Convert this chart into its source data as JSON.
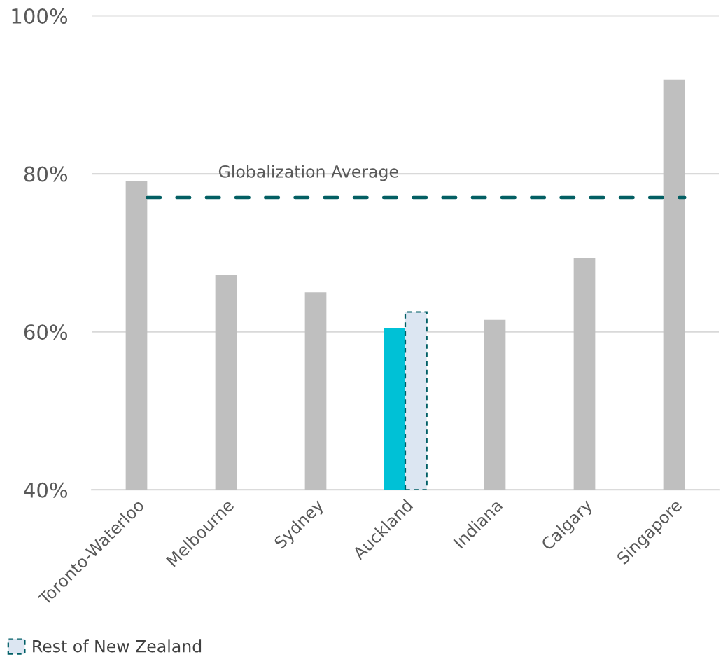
{
  "chart_data": {
    "type": "bar",
    "categories": [
      "Toronto-Waterloo",
      "Melbourne",
      "Sydney",
      "Auckland",
      "Indiana",
      "Calgary",
      "Singapore"
    ],
    "series": [
      {
        "colors": [
          "#bfbfbf",
          "#bfbfbf",
          "#bfbfbf",
          "#00c1d6",
          "#bfbfbf",
          "#bfbfbf",
          "#bfbfbf"
        ],
        "values": [
          79.1,
          67.2,
          65.0,
          60.5,
          61.5,
          69.3,
          91.9
        ]
      },
      {
        "name": "Rest of New Zealand",
        "color": "#dce6f2",
        "line_style": "dashed",
        "values": [
          null,
          null,
          null,
          62.5,
          null,
          null,
          null
        ]
      }
    ],
    "ylim": [
      40,
      100
    ],
    "yticks": [
      {
        "value": 40,
        "label": "40%"
      },
      {
        "value": 60,
        "label": "60%"
      },
      {
        "value": 80,
        "label": "80%"
      },
      {
        "value": 100,
        "label": "100%"
      }
    ],
    "ref_lines": [
      {
        "axis": "y",
        "value": 77.0,
        "label": "Globalization Average",
        "color": "#035f63",
        "line_style": "dashed"
      }
    ],
    "grid": "y",
    "legend": "bottom left"
  }
}
